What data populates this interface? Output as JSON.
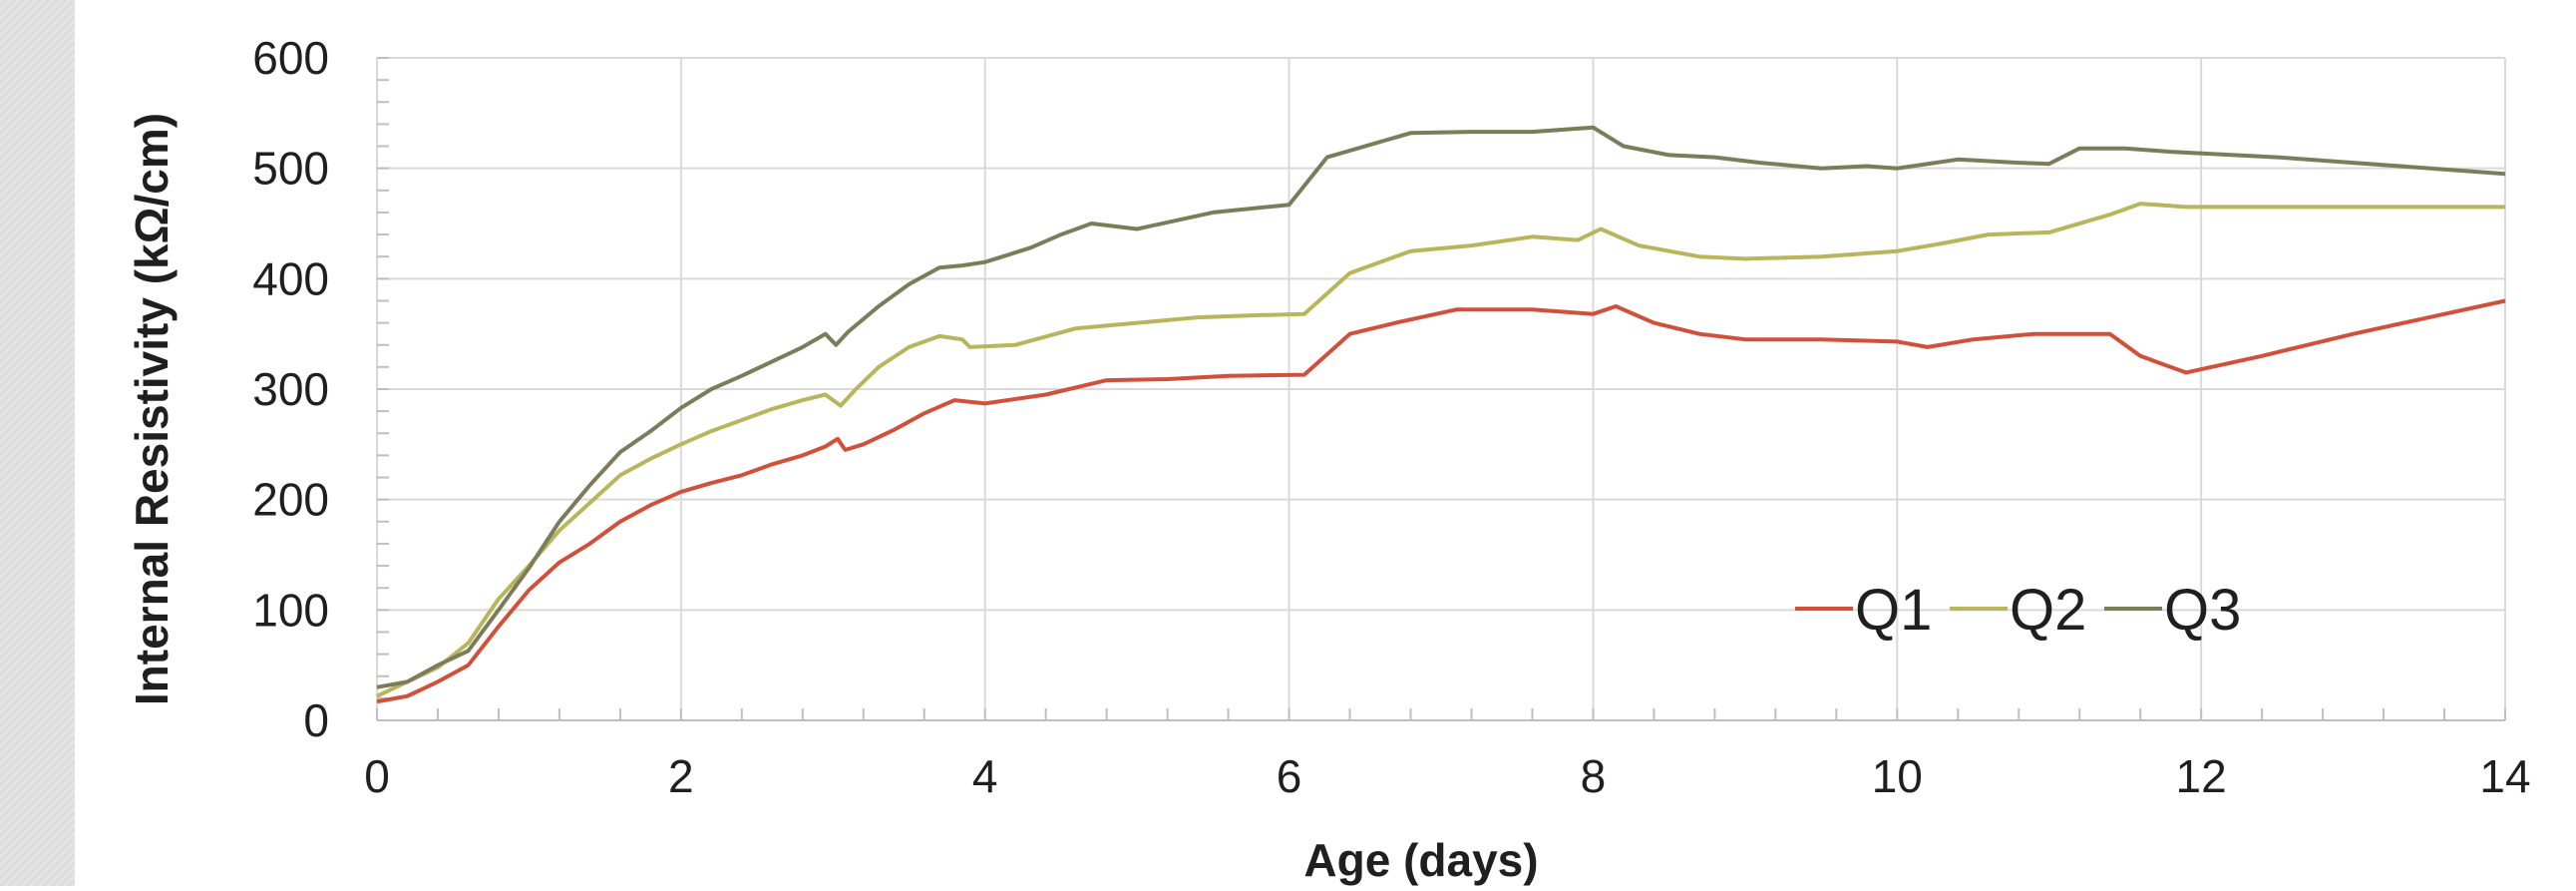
{
  "chart_data": {
    "type": "line",
    "title": "",
    "xlabel": "Age (days)",
    "ylabel": "Internal Resistivity (kΩ/cm)",
    "xlim": [
      0,
      14
    ],
    "ylim": [
      0,
      600
    ],
    "x_ticks": [
      0,
      2,
      4,
      6,
      8,
      10,
      12,
      14
    ],
    "y_ticks": [
      0,
      100,
      200,
      300,
      400,
      500,
      600
    ],
    "grid": true,
    "legend_position": "lower-right",
    "series": [
      {
        "name": "Q1",
        "color": "#d2503a",
        "points": [
          [
            0,
            17
          ],
          [
            0.2,
            22
          ],
          [
            0.4,
            35
          ],
          [
            0.6,
            50
          ],
          [
            0.8,
            85
          ],
          [
            1,
            118
          ],
          [
            1.2,
            143
          ],
          [
            1.4,
            160
          ],
          [
            1.6,
            180
          ],
          [
            1.8,
            195
          ],
          [
            2,
            207
          ],
          [
            2.2,
            215
          ],
          [
            2.4,
            222
          ],
          [
            2.6,
            232
          ],
          [
            2.8,
            240
          ],
          [
            2.95,
            248
          ],
          [
            3.03,
            255
          ],
          [
            3.08,
            245
          ],
          [
            3.2,
            250
          ],
          [
            3.4,
            263
          ],
          [
            3.6,
            278
          ],
          [
            3.8,
            290
          ],
          [
            4,
            287
          ],
          [
            4.4,
            295
          ],
          [
            4.8,
            308
          ],
          [
            5.2,
            309
          ],
          [
            5.6,
            312
          ],
          [
            6.1,
            313
          ],
          [
            6.4,
            350
          ],
          [
            6.7,
            360
          ],
          [
            7.1,
            372
          ],
          [
            7.6,
            372
          ],
          [
            8,
            368
          ],
          [
            8.15,
            375
          ],
          [
            8.4,
            360
          ],
          [
            8.7,
            350
          ],
          [
            9,
            345
          ],
          [
            9.5,
            345
          ],
          [
            10,
            343
          ],
          [
            10.2,
            338
          ],
          [
            10.5,
            345
          ],
          [
            10.9,
            350
          ],
          [
            11.4,
            350
          ],
          [
            11.6,
            330
          ],
          [
            11.9,
            315
          ],
          [
            12.4,
            330
          ],
          [
            13,
            350
          ],
          [
            13.5,
            365
          ],
          [
            14,
            380
          ]
        ]
      },
      {
        "name": "Q2",
        "color": "#b8b55a",
        "points": [
          [
            0,
            22
          ],
          [
            0.2,
            35
          ],
          [
            0.4,
            48
          ],
          [
            0.6,
            70
          ],
          [
            0.8,
            110
          ],
          [
            1,
            140
          ],
          [
            1.2,
            172
          ],
          [
            1.4,
            197
          ],
          [
            1.6,
            222
          ],
          [
            1.8,
            237
          ],
          [
            2,
            250
          ],
          [
            2.2,
            262
          ],
          [
            2.4,
            272
          ],
          [
            2.6,
            282
          ],
          [
            2.8,
            290
          ],
          [
            2.95,
            295
          ],
          [
            3.05,
            285
          ],
          [
            3.15,
            300
          ],
          [
            3.3,
            320
          ],
          [
            3.5,
            338
          ],
          [
            3.7,
            348
          ],
          [
            3.85,
            345
          ],
          [
            3.9,
            338
          ],
          [
            4.2,
            340
          ],
          [
            4.6,
            355
          ],
          [
            5,
            360
          ],
          [
            5.4,
            365
          ],
          [
            5.8,
            367
          ],
          [
            6.1,
            368
          ],
          [
            6.4,
            405
          ],
          [
            6.8,
            425
          ],
          [
            7.2,
            430
          ],
          [
            7.6,
            438
          ],
          [
            7.9,
            435
          ],
          [
            8.05,
            445
          ],
          [
            8.3,
            430
          ],
          [
            8.7,
            420
          ],
          [
            9,
            418
          ],
          [
            9.5,
            420
          ],
          [
            10,
            425
          ],
          [
            10.3,
            432
          ],
          [
            10.6,
            440
          ],
          [
            11,
            442
          ],
          [
            11.4,
            458
          ],
          [
            11.6,
            468
          ],
          [
            11.9,
            465
          ],
          [
            12.5,
            465
          ],
          [
            13,
            465
          ],
          [
            14,
            465
          ]
        ]
      },
      {
        "name": "Q3",
        "color": "#7d7c5a",
        "points": [
          [
            0,
            30
          ],
          [
            0.2,
            35
          ],
          [
            0.4,
            50
          ],
          [
            0.6,
            63
          ],
          [
            0.8,
            100
          ],
          [
            1,
            138
          ],
          [
            1.2,
            180
          ],
          [
            1.4,
            213
          ],
          [
            1.6,
            243
          ],
          [
            1.8,
            262
          ],
          [
            2,
            283
          ],
          [
            2.2,
            300
          ],
          [
            2.4,
            312
          ],
          [
            2.6,
            325
          ],
          [
            2.8,
            338
          ],
          [
            2.95,
            350
          ],
          [
            3.02,
            340
          ],
          [
            3.1,
            352
          ],
          [
            3.3,
            375
          ],
          [
            3.5,
            395
          ],
          [
            3.7,
            410
          ],
          [
            3.85,
            412
          ],
          [
            4,
            415
          ],
          [
            4.3,
            428
          ],
          [
            4.5,
            440
          ],
          [
            4.7,
            450
          ],
          [
            5,
            445
          ],
          [
            5.5,
            460
          ],
          [
            6,
            467
          ],
          [
            6.25,
            510
          ],
          [
            6.8,
            532
          ],
          [
            7.2,
            533
          ],
          [
            7.6,
            533
          ],
          [
            8,
            537
          ],
          [
            8.2,
            520
          ],
          [
            8.5,
            512
          ],
          [
            8.8,
            510
          ],
          [
            9.1,
            505
          ],
          [
            9.5,
            500
          ],
          [
            9.8,
            502
          ],
          [
            10,
            500
          ],
          [
            10.4,
            508
          ],
          [
            10.8,
            505
          ],
          [
            11,
            504
          ],
          [
            11.2,
            518
          ],
          [
            11.5,
            518
          ],
          [
            11.8,
            515
          ],
          [
            12.5,
            510
          ],
          [
            13,
            505
          ],
          [
            14,
            495
          ]
        ]
      }
    ]
  }
}
